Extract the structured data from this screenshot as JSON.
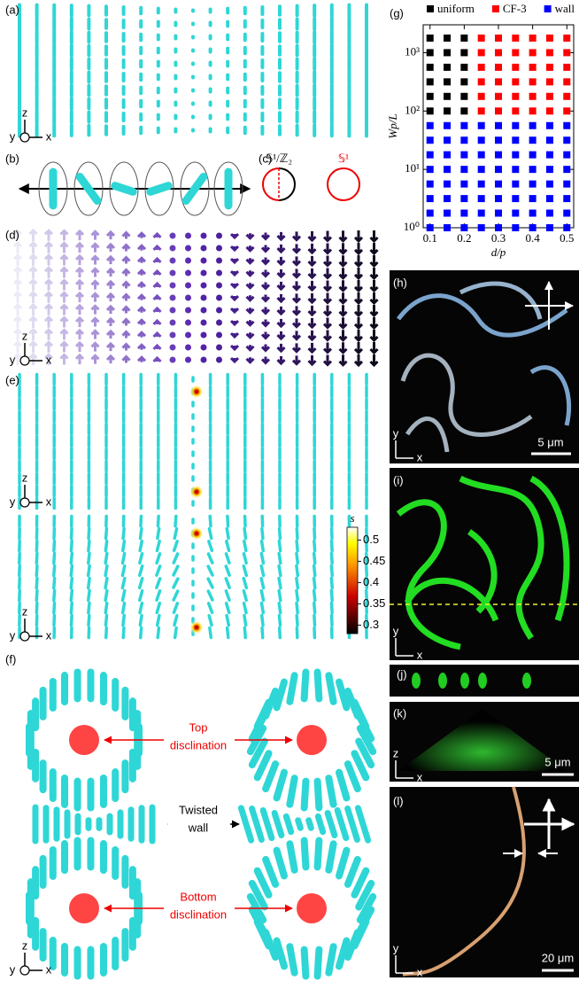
{
  "panel_labels": {
    "a": "(a)",
    "b": "(b)",
    "c": "(c)",
    "d": "(d)",
    "e": "(e)",
    "f": "(f)",
    "g": "(g)",
    "h": "(h)",
    "i": "(i)",
    "j": "(j)",
    "k": "(k)",
    "l": "(l)"
  },
  "axes": {
    "x": "x",
    "y": "y",
    "z": "z"
  },
  "panel_c": {
    "left": "𝕊¹/ℤ₂",
    "right": "𝕊¹"
  },
  "panel_f": {
    "top": [
      "Top",
      "disclination"
    ],
    "wall": [
      "Twisted",
      "wall"
    ],
    "bottom": [
      "Bottom",
      "disclination"
    ]
  },
  "colorbar": {
    "label": "s",
    "ticks": [
      0.3,
      0.35,
      0.4,
      0.45,
      0.5
    ],
    "lim": [
      0.28,
      0.53
    ]
  },
  "scale_bars": {
    "h": "5 μm",
    "k": "5 μm",
    "l": "20 μm"
  },
  "chart_data": {
    "type": "scatter",
    "xlabel": "d/p",
    "ylabel": "Wp/L",
    "log_y": true,
    "legend": "top",
    "xlim": [
      0.08,
      0.52
    ],
    "xticks": [
      0.1,
      0.2,
      0.3,
      0.4,
      0.5
    ],
    "ylim": [
      1,
      3000
    ],
    "yticks": [
      {
        "value": 1,
        "label": "10⁰"
      },
      {
        "value": 10,
        "label": "10¹"
      },
      {
        "value": 100,
        "label": "10²"
      },
      {
        "value": 1000,
        "label": "10³"
      }
    ],
    "series": [
      {
        "name": "uniform",
        "color": "#000000",
        "x": [
          0.1,
          0.1,
          0.1,
          0.1,
          0.1,
          0.1,
          0.15,
          0.15,
          0.15,
          0.15,
          0.15,
          0.15,
          0.2,
          0.2,
          0.2,
          0.2,
          0.2,
          0.2
        ],
        "y": [
          100,
          178,
          316,
          562,
          1000,
          1778,
          100,
          178,
          316,
          562,
          1000,
          1778,
          100,
          178,
          316,
          562,
          1000,
          1778
        ]
      },
      {
        "name": "CF-3",
        "color": "#ff0000",
        "x": [
          0.25,
          0.25,
          0.25,
          0.25,
          0.25,
          0.25,
          0.3,
          0.3,
          0.3,
          0.3,
          0.3,
          0.3,
          0.35,
          0.35,
          0.35,
          0.35,
          0.35,
          0.35,
          0.4,
          0.4,
          0.4,
          0.4,
          0.4,
          0.4,
          0.45,
          0.45,
          0.45,
          0.45,
          0.45,
          0.45,
          0.5,
          0.5,
          0.5,
          0.5,
          0.5,
          0.5
        ],
        "y": [
          100,
          178,
          316,
          562,
          1000,
          1778,
          100,
          178,
          316,
          562,
          1000,
          1778,
          100,
          178,
          316,
          562,
          1000,
          1778,
          100,
          178,
          316,
          562,
          1000,
          1778,
          100,
          178,
          316,
          562,
          1000,
          1778,
          100,
          178,
          316,
          562,
          1000,
          1778
        ]
      },
      {
        "name": "wall",
        "color": "#0000ff",
        "x": [
          0.1,
          0.1,
          0.1,
          0.1,
          0.1,
          0.1,
          0.1,
          0.1,
          0.15,
          0.15,
          0.15,
          0.15,
          0.15,
          0.15,
          0.15,
          0.15,
          0.2,
          0.2,
          0.2,
          0.2,
          0.2,
          0.2,
          0.2,
          0.2,
          0.25,
          0.25,
          0.25,
          0.25,
          0.25,
          0.25,
          0.25,
          0.25,
          0.3,
          0.3,
          0.3,
          0.3,
          0.3,
          0.3,
          0.3,
          0.3,
          0.35,
          0.35,
          0.35,
          0.35,
          0.35,
          0.35,
          0.35,
          0.35,
          0.4,
          0.4,
          0.4,
          0.4,
          0.4,
          0.4,
          0.4,
          0.4,
          0.45,
          0.45,
          0.45,
          0.45,
          0.45,
          0.45,
          0.45,
          0.45,
          0.5,
          0.5,
          0.5,
          0.5,
          0.5,
          0.5,
          0.5,
          0.5
        ],
        "y": [
          1,
          1.78,
          3.16,
          5.62,
          10,
          17.8,
          31.6,
          56.2,
          1,
          1.78,
          3.16,
          5.62,
          10,
          17.8,
          31.6,
          56.2,
          1,
          1.78,
          3.16,
          5.62,
          10,
          17.8,
          31.6,
          56.2,
          1,
          1.78,
          3.16,
          5.62,
          10,
          17.8,
          31.6,
          56.2,
          1,
          1.78,
          3.16,
          5.62,
          10,
          17.8,
          31.6,
          56.2,
          1,
          1.78,
          3.16,
          5.62,
          10,
          17.8,
          31.6,
          56.2,
          1,
          1.78,
          3.16,
          5.62,
          10,
          17.8,
          31.6,
          56.2,
          1,
          1.78,
          3.16,
          5.62,
          10,
          17.8,
          31.6,
          56.2,
          1,
          1.78,
          3.16,
          5.62,
          10,
          17.8,
          31.6,
          56.2
        ]
      }
    ]
  }
}
